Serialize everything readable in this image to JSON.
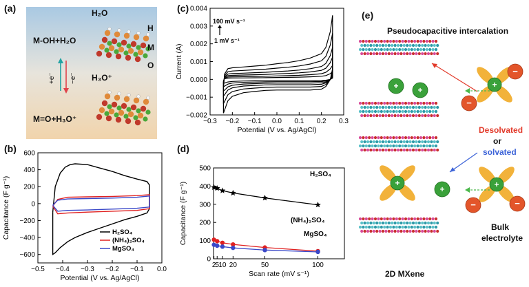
{
  "panels": {
    "a": {
      "label": "(a)",
      "top_species": "H₂O",
      "bottom_species": "H₃O⁺",
      "eq_top": "M-OH+H₂O",
      "eq_bottom": "M=O+H₃O⁺",
      "atom_H": "H",
      "atom_M": "M",
      "atom_O": "O",
      "arrow_up_label": "+e⁻",
      "arrow_down_label": "−e⁻",
      "colors": {
        "bg_top": "#a9c9e3",
        "bg_bottom": "#f1d4ac"
      }
    },
    "b": {
      "label": "(b)"
    },
    "c": {
      "label": "(c)"
    },
    "d": {
      "label": "(d)"
    },
    "e": {
      "label": "(e)",
      "title": "Pseudocapacitive intercalation",
      "desolvated": "Desolvated",
      "or": "or",
      "solvated": "solvated",
      "bulk": "Bulk",
      "electrolyte": "electrolyte",
      "mxene": "2D MXene",
      "cation_symbol": "+",
      "anion_symbol": "−",
      "colors": {
        "cation": "#3aa13a",
        "anion": "#e3552a",
        "water": "#f2b23a",
        "desolvated": "#e23a2a",
        "solvated": "#3c63d8"
      }
    }
  },
  "chart_data": [
    {
      "panel": "b",
      "type": "line",
      "xlabel": "Potential (V vs. Ag/AgCl)",
      "ylabel": "Capacitance (F g⁻¹)",
      "xlim": [
        -0.5,
        0.0
      ],
      "ylim": [
        -700,
        600
      ],
      "xticks": [
        -0.5,
        -0.4,
        -0.3,
        -0.2,
        -0.1,
        0.0
      ],
      "xtick_labels": [
        "−0.5",
        "−0.4",
        "−0.3",
        "−0.2",
        "−0.1",
        "0.0"
      ],
      "yticks": [
        -600,
        -400,
        -200,
        0,
        200,
        400,
        600
      ],
      "ytick_labels": [
        "−600",
        "−400",
        "−200",
        "0",
        "200",
        "400",
        "600"
      ],
      "legend_position": "bottom-right",
      "series": [
        {
          "name": "H₂SO₄",
          "color": "#000000",
          "x": [
            -0.44,
            -0.43,
            -0.41,
            -0.39,
            -0.37,
            -0.35,
            -0.3,
            -0.25,
            -0.2,
            -0.15,
            -0.1,
            -0.06,
            -0.05,
            -0.05,
            -0.05,
            -0.06,
            -0.1,
            -0.15,
            -0.2,
            -0.25,
            -0.3,
            -0.35,
            -0.38,
            -0.41,
            -0.43,
            -0.44,
            -0.44
          ],
          "y": [
            -100,
            200,
            360,
            430,
            460,
            470,
            460,
            420,
            380,
            330,
            290,
            260,
            220,
            100,
            -60,
            -110,
            -150,
            -190,
            -240,
            -290,
            -340,
            -400,
            -450,
            -520,
            -580,
            -600,
            -100
          ]
        },
        {
          "name": "(NH₄)₂SO₄",
          "color": "#e02020",
          "x": [
            -0.44,
            -0.42,
            -0.38,
            -0.3,
            -0.2,
            -0.1,
            -0.05,
            -0.05,
            -0.1,
            -0.2,
            -0.3,
            -0.38,
            -0.42,
            -0.44
          ],
          "y": [
            -30,
            50,
            75,
            80,
            85,
            95,
            105,
            -60,
            -80,
            -90,
            -100,
            -110,
            -120,
            -30
          ]
        },
        {
          "name": "MgSO₄",
          "color": "#3a48c8",
          "x": [
            -0.44,
            -0.42,
            -0.38,
            -0.3,
            -0.2,
            -0.1,
            -0.05,
            -0.05,
            -0.1,
            -0.2,
            -0.3,
            -0.38,
            -0.42,
            -0.44
          ],
          "y": [
            -20,
            40,
            55,
            60,
            65,
            75,
            90,
            -40,
            -55,
            -65,
            -75,
            -80,
            -90,
            -20
          ]
        }
      ]
    },
    {
      "panel": "c",
      "type": "line",
      "xlabel": "Potential (V vs. Ag/AgCl)",
      "ylabel": "Current (A)",
      "xlim": [
        -0.3,
        0.3
      ],
      "ylim": [
        -0.002,
        0.004
      ],
      "xticks": [
        -0.3,
        -0.2,
        -0.1,
        0.0,
        0.1,
        0.2,
        0.3
      ],
      "xtick_labels": [
        "−0.3",
        "−0.2",
        "−0.1",
        "0.0",
        "0.1",
        "0.2",
        "0.3"
      ],
      "yticks": [
        -0.002,
        -0.001,
        0.0,
        0.001,
        0.002,
        0.003,
        0.004
      ],
      "ytick_labels": [
        "−0.002",
        "−0.001",
        "0.000",
        "0.001",
        "0.002",
        "0.003",
        "0.004"
      ],
      "annotation_top": "100 mV s⁻¹",
      "annotation_bottom": "1 mV s⁻¹",
      "series_scale": [
        1.0,
        0.72,
        0.5,
        0.35,
        0.22,
        0.12
      ],
      "base_loop": {
        "x": [
          -0.24,
          -0.235,
          -0.22,
          -0.2,
          -0.15,
          -0.1,
          -0.05,
          0.0,
          0.05,
          0.1,
          0.15,
          0.2,
          0.22,
          0.24,
          0.25,
          0.25,
          0.24,
          0.22,
          0.2,
          0.15,
          0.1,
          0.05,
          0.0,
          -0.05,
          -0.1,
          -0.15,
          -0.2,
          -0.22,
          -0.24,
          -0.24
        ],
        "y": [
          -0.0005,
          0.0003,
          0.0006,
          0.00065,
          0.0007,
          0.00075,
          0.0008,
          0.00088,
          0.00095,
          0.00105,
          0.0012,
          0.00145,
          0.0018,
          0.0027,
          0.0036,
          0.0006,
          0.0,
          -0.0004,
          -0.00055,
          -0.0006,
          -0.0006,
          -0.0006,
          -0.0006,
          -0.00062,
          -0.00068,
          -0.00075,
          -0.00095,
          -0.0012,
          -0.0019,
          -0.0005
        ]
      },
      "color": "#000000"
    },
    {
      "panel": "d",
      "type": "line",
      "xlabel": "Scan rate (mV s⁻¹)",
      "ylabel": "Capacitance (F g⁻¹)",
      "xscale": "log",
      "xlim": [
        1.6,
        125
      ],
      "ylim": [
        0,
        500
      ],
      "xticks": [
        2,
        5,
        10,
        20,
        50,
        100
      ],
      "xtick_labels": [
        "2",
        "5",
        "10",
        "20",
        "50",
        "100"
      ],
      "yticks": [
        0,
        100,
        200,
        300,
        400,
        500
      ],
      "ytick_labels": [
        "0",
        "100",
        "200",
        "300",
        "400",
        "500"
      ],
      "series": [
        {
          "name": "H₂SO₄",
          "color": "#000000",
          "marker": "star",
          "x": [
            2,
            5,
            10,
            20,
            50,
            100
          ],
          "y": [
            393,
            388,
            375,
            362,
            335,
            297
          ]
        },
        {
          "name": "(NH₄)₂SO₄",
          "color": "#e02020",
          "marker": "circle",
          "x": [
            2,
            5,
            10,
            20,
            50,
            100
          ],
          "y": [
            105,
            97,
            88,
            79,
            62,
            42
          ]
        },
        {
          "name": "MgSO₄",
          "color": "#3a48c8",
          "marker": "circle",
          "x": [
            2,
            5,
            10,
            20,
            50,
            100
          ],
          "y": [
            77,
            72,
            67,
            60,
            48,
            38
          ]
        }
      ]
    }
  ]
}
